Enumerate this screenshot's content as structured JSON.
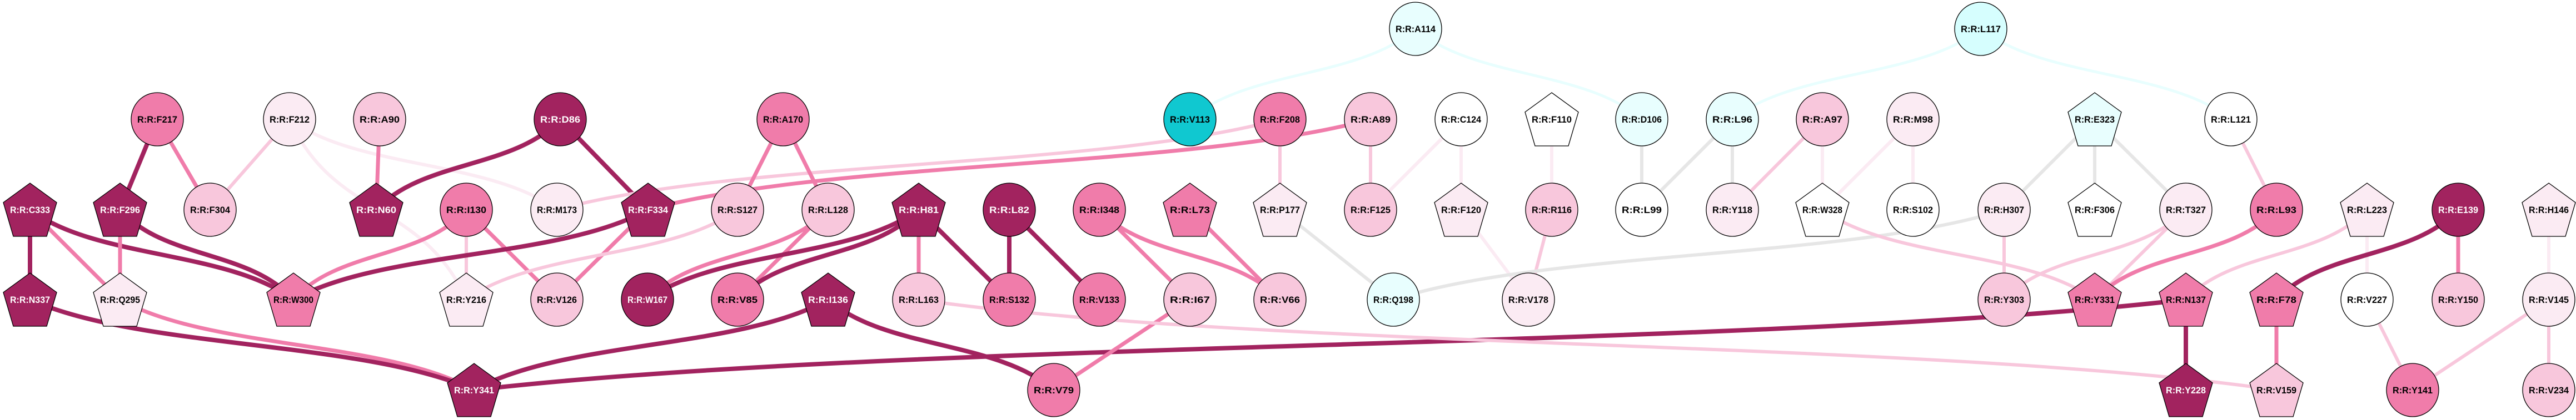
{
  "palette": {
    "dark": "#a2235f",
    "medium": "#f07caa",
    "light": "#f8c7dc",
    "verylight": "#fbebf3",
    "white": "#ffffff",
    "cyan": "#10c8d0",
    "lightcyan": "#e8fefe",
    "palecyan": "#d6fefe",
    "gray": "#e6e6e6"
  },
  "nodes": [
    {
      "id": "C333",
      "label": "R:R:C333",
      "shape": "pentagon",
      "tier": "dark"
    },
    {
      "id": "N337",
      "label": "R:R:N337",
      "shape": "pentagon",
      "tier": "dark"
    },
    {
      "id": "F296",
      "label": "R:R:F296",
      "shape": "pentagon",
      "tier": "dark"
    },
    {
      "id": "Q295",
      "label": "R:R:Q295",
      "shape": "pentagon",
      "tier": "verylight"
    },
    {
      "id": "F217",
      "label": "R:R:F217",
      "shape": "ellipse",
      "tier": "medium"
    },
    {
      "id": "F304",
      "label": "R:R:F304",
      "shape": "ellipse",
      "tier": "light"
    },
    {
      "id": "F212",
      "label": "R:R:F212",
      "shape": "ellipse",
      "tier": "verylight"
    },
    {
      "id": "A90",
      "label": "R:R:A90",
      "shape": "ellipse",
      "tier": "light"
    },
    {
      "id": "N60",
      "label": "R:R:N60",
      "shape": "pentagon",
      "tier": "dark"
    },
    {
      "id": "D86",
      "label": "R:R:D86",
      "shape": "ellipse",
      "tier": "dark"
    },
    {
      "id": "I130",
      "label": "R:R:I130",
      "shape": "ellipse",
      "tier": "medium"
    },
    {
      "id": "M173",
      "label": "R:R:M173",
      "shape": "ellipse",
      "tier": "verylight"
    },
    {
      "id": "F334",
      "label": "R:R:F334",
      "shape": "pentagon",
      "tier": "dark"
    },
    {
      "id": "W300",
      "label": "R:R:W300",
      "shape": "pentagon",
      "tier": "medium"
    },
    {
      "id": "Y216",
      "label": "R:R:Y216",
      "shape": "pentagon",
      "tier": "verylight"
    },
    {
      "id": "V126",
      "label": "R:R:V126",
      "shape": "ellipse",
      "tier": "light"
    },
    {
      "id": "W167",
      "label": "R:R:W167",
      "shape": "ellipse",
      "tier": "dark"
    },
    {
      "id": "Y341",
      "label": "R:R:Y341",
      "shape": "pentagon",
      "tier": "dark"
    },
    {
      "id": "A170",
      "label": "R:R:A170",
      "shape": "ellipse",
      "tier": "medium"
    },
    {
      "id": "S127",
      "label": "R:R:S127",
      "shape": "ellipse",
      "tier": "light"
    },
    {
      "id": "L128",
      "label": "R:R:L128",
      "shape": "ellipse",
      "tier": "light"
    },
    {
      "id": "H81",
      "label": "R:R:H81",
      "shape": "pentagon",
      "tier": "dark"
    },
    {
      "id": "L82",
      "label": "R:R:L82",
      "shape": "ellipse",
      "tier": "dark"
    },
    {
      "id": "I348",
      "label": "R:R:I348",
      "shape": "ellipse",
      "tier": "medium"
    },
    {
      "id": "L73",
      "label": "R:R:L73",
      "shape": "pentagon",
      "tier": "medium"
    },
    {
      "id": "P177",
      "label": "R:R:P177",
      "shape": "pentagon",
      "tier": "verylight"
    },
    {
      "id": "V85",
      "label": "R:R:V85",
      "shape": "ellipse",
      "tier": "medium"
    },
    {
      "id": "I136",
      "label": "R:R:I136",
      "shape": "pentagon",
      "tier": "dark"
    },
    {
      "id": "L163",
      "label": "R:R:L163",
      "shape": "ellipse",
      "tier": "light"
    },
    {
      "id": "S132",
      "label": "R:R:S132",
      "shape": "ellipse",
      "tier": "medium"
    },
    {
      "id": "V133",
      "label": "R:R:V133",
      "shape": "ellipse",
      "tier": "medium"
    },
    {
      "id": "I67",
      "label": "R:R:I67",
      "shape": "ellipse",
      "tier": "light"
    },
    {
      "id": "V66",
      "label": "R:R:V66",
      "shape": "ellipse",
      "tier": "light"
    },
    {
      "id": "V79",
      "label": "R:R:V79",
      "shape": "ellipse",
      "tier": "medium"
    },
    {
      "id": "V113",
      "label": "R:R:V113",
      "shape": "ellipse",
      "tier": "cyan"
    },
    {
      "id": "F208",
      "label": "R:R:F208",
      "shape": "ellipse",
      "tier": "medium"
    },
    {
      "id": "A114",
      "label": "R:R:A114",
      "shape": "ellipse",
      "tier": "lightcyan"
    },
    {
      "id": "A89",
      "label": "R:R:A89",
      "shape": "ellipse",
      "tier": "light"
    },
    {
      "id": "C124",
      "label": "R:R:C124",
      "shape": "ellipse",
      "tier": "white"
    },
    {
      "id": "F110",
      "label": "R:R:F110",
      "shape": "pentagon",
      "tier": "white"
    },
    {
      "id": "D106",
      "label": "R:R:D106",
      "shape": "ellipse",
      "tier": "lightcyan"
    },
    {
      "id": "L96",
      "label": "R:R:L96",
      "shape": "ellipse",
      "tier": "lightcyan"
    },
    {
      "id": "A97",
      "label": "R:R:A97",
      "shape": "ellipse",
      "tier": "light"
    },
    {
      "id": "M98",
      "label": "R:R:M98",
      "shape": "ellipse",
      "tier": "verylight"
    },
    {
      "id": "F125",
      "label": "R:R:F125",
      "shape": "ellipse",
      "tier": "light"
    },
    {
      "id": "F120",
      "label": "R:R:F120",
      "shape": "pentagon",
      "tier": "verylight"
    },
    {
      "id": "R116",
      "label": "R:R:R116",
      "shape": "ellipse",
      "tier": "light"
    },
    {
      "id": "L99",
      "label": "R:R:L99",
      "shape": "ellipse",
      "tier": "white"
    },
    {
      "id": "Y118",
      "label": "R:R:Y118",
      "shape": "ellipse",
      "tier": "verylight"
    },
    {
      "id": "W328",
      "label": "R:R:W328",
      "shape": "pentagon",
      "tier": "white"
    },
    {
      "id": "S102",
      "label": "R:R:S102",
      "shape": "ellipse",
      "tier": "white"
    },
    {
      "id": "Q198",
      "label": "R:R:Q198",
      "shape": "ellipse",
      "tier": "lightcyan"
    },
    {
      "id": "V178",
      "label": "R:R:V178",
      "shape": "ellipse",
      "tier": "verylight"
    },
    {
      "id": "L117",
      "label": "R:R:L117",
      "shape": "ellipse",
      "tier": "palecyan"
    },
    {
      "id": "E323",
      "label": "R:R:E323",
      "shape": "pentagon",
      "tier": "lightcyan"
    },
    {
      "id": "L121",
      "label": "R:R:L121",
      "shape": "ellipse",
      "tier": "white"
    },
    {
      "id": "H307",
      "label": "R:R:H307",
      "shape": "ellipse",
      "tier": "verylight"
    },
    {
      "id": "F306",
      "label": "R:R:F306",
      "shape": "pentagon",
      "tier": "white"
    },
    {
      "id": "T327",
      "label": "R:R:T327",
      "shape": "ellipse",
      "tier": "verylight"
    },
    {
      "id": "L93",
      "label": "R:R:L93",
      "shape": "ellipse",
      "tier": "medium"
    },
    {
      "id": "L223",
      "label": "R:R:L223",
      "shape": "pentagon",
      "tier": "verylight"
    },
    {
      "id": "E139",
      "label": "R:R:E139",
      "shape": "ellipse",
      "tier": "dark"
    },
    {
      "id": "H146",
      "label": "R:R:H146",
      "shape": "pentagon",
      "tier": "verylight"
    },
    {
      "id": "Y303",
      "label": "R:R:Y303",
      "shape": "ellipse",
      "tier": "light"
    },
    {
      "id": "Y331",
      "label": "R:R:Y331",
      "shape": "pentagon",
      "tier": "medium"
    },
    {
      "id": "N137",
      "label": "R:R:N137",
      "shape": "pentagon",
      "tier": "medium"
    },
    {
      "id": "F78",
      "label": "R:R:F78",
      "shape": "pentagon",
      "tier": "medium"
    },
    {
      "id": "V227",
      "label": "R:R:V227",
      "shape": "ellipse",
      "tier": "white"
    },
    {
      "id": "Y150",
      "label": "R:R:Y150",
      "shape": "ellipse",
      "tier": "light"
    },
    {
      "id": "V145",
      "label": "R:R:V145",
      "shape": "ellipse",
      "tier": "verylight"
    },
    {
      "id": "Y228",
      "label": "R:R:Y228",
      "shape": "pentagon",
      "tier": "dark"
    },
    {
      "id": "V159",
      "label": "R:R:V159",
      "shape": "pentagon",
      "tier": "light"
    },
    {
      "id": "Y141",
      "label": "R:R:Y141",
      "shape": "ellipse",
      "tier": "medium"
    },
    {
      "id": "V234",
      "label": "R:R:V234",
      "shape": "ellipse",
      "tier": "light"
    }
  ],
  "edges": [
    [
      "C333",
      "N337",
      "dark"
    ],
    [
      "C333",
      "Q295",
      "medium"
    ],
    [
      "C333",
      "W300",
      "dark"
    ],
    [
      "F296",
      "F217",
      "dark"
    ],
    [
      "F217",
      "F304",
      "medium"
    ],
    [
      "F296",
      "Q295",
      "medium"
    ],
    [
      "F296",
      "W300",
      "dark"
    ],
    [
      "F212",
      "F304",
      "light"
    ],
    [
      "F212",
      "Y216",
      "verylight"
    ],
    [
      "F212",
      "M173",
      "verylight"
    ],
    [
      "A90",
      "N60",
      "medium"
    ],
    [
      "D86",
      "N60",
      "dark"
    ],
    [
      "D86",
      "F334",
      "dark"
    ],
    [
      "I130",
      "W300",
      "medium"
    ],
    [
      "I130",
      "Y216",
      "light"
    ],
    [
      "I130",
      "V126",
      "medium"
    ],
    [
      "F334",
      "W300",
      "dark"
    ],
    [
      "F334",
      "V126",
      "medium"
    ],
    [
      "M173",
      "F208",
      "light"
    ],
    [
      "F334",
      "A89",
      "medium"
    ],
    [
      "Y216",
      "S127",
      "light"
    ],
    [
      "Q295",
      "Y341",
      "medium"
    ],
    [
      "N337",
      "Y341",
      "dark"
    ],
    [
      "I136",
      "Y341",
      "dark"
    ],
    [
      "Y341",
      "N137",
      "dark"
    ],
    [
      "A170",
      "S127",
      "medium"
    ],
    [
      "A170",
      "L128",
      "medium"
    ],
    [
      "L128",
      "W167",
      "medium"
    ],
    [
      "L128",
      "V85",
      "medium"
    ],
    [
      "H81",
      "W167",
      "dark"
    ],
    [
      "H81",
      "V85",
      "dark"
    ],
    [
      "H81",
      "L163",
      "medium"
    ],
    [
      "H81",
      "S132",
      "dark"
    ],
    [
      "L82",
      "S132",
      "dark"
    ],
    [
      "L82",
      "V133",
      "dark"
    ],
    [
      "I348",
      "I67",
      "medium"
    ],
    [
      "I348",
      "V66",
      "medium"
    ],
    [
      "L73",
      "V66",
      "medium"
    ],
    [
      "I136",
      "V79",
      "dark"
    ],
    [
      "I67",
      "V79",
      "medium"
    ],
    [
      "L163",
      "V159",
      "light"
    ],
    [
      "F208",
      "P177",
      "light"
    ],
    [
      "P177",
      "Q198",
      "gray"
    ],
    [
      "V113",
      "A114",
      "lightcyan"
    ],
    [
      "A114",
      "D106",
      "lightcyan"
    ],
    [
      "A89",
      "F125",
      "light"
    ],
    [
      "C124",
      "F125",
      "verylight"
    ],
    [
      "C124",
      "F120",
      "verylight"
    ],
    [
      "F120",
      "V178",
      "verylight"
    ],
    [
      "F110",
      "R116",
      "verylight"
    ],
    [
      "R116",
      "V178",
      "light"
    ],
    [
      "D106",
      "L99",
      "gray"
    ],
    [
      "L96",
      "L99",
      "gray"
    ],
    [
      "L96",
      "Y118",
      "gray"
    ],
    [
      "A97",
      "Y118",
      "light"
    ],
    [
      "A97",
      "W328",
      "verylight"
    ],
    [
      "M98",
      "W328",
      "verylight"
    ],
    [
      "M98",
      "S102",
      "verylight"
    ],
    [
      "L96",
      "L117",
      "lightcyan"
    ],
    [
      "L117",
      "L121",
      "lightcyan"
    ],
    [
      "Q198",
      "H307",
      "gray"
    ],
    [
      "W328",
      "Y331",
      "light"
    ],
    [
      "E323",
      "H307",
      "gray"
    ],
    [
      "E323",
      "F306",
      "gray"
    ],
    [
      "E323",
      "T327",
      "gray"
    ],
    [
      "H307",
      "Y303",
      "light"
    ],
    [
      "T327",
      "Y303",
      "light"
    ],
    [
      "T327",
      "Y331",
      "light"
    ],
    [
      "L121",
      "L93",
      "light"
    ],
    [
      "L93",
      "Y331",
      "medium"
    ],
    [
      "L223",
      "N137",
      "light"
    ],
    [
      "L223",
      "V227",
      "verylight"
    ],
    [
      "E139",
      "F78",
      "dark"
    ],
    [
      "E139",
      "Y150",
      "medium"
    ],
    [
      "H146",
      "V145",
      "verylight"
    ],
    [
      "N137",
      "Y228",
      "dark"
    ],
    [
      "F78",
      "V159",
      "medium"
    ],
    [
      "V227",
      "Y141",
      "light"
    ],
    [
      "V145",
      "Y141",
      "light"
    ],
    [
      "V145",
      "V234",
      "light"
    ]
  ]
}
